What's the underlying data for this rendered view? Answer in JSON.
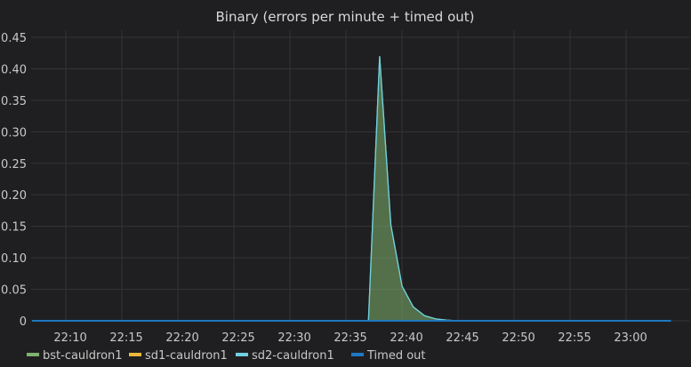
{
  "chart_data": {
    "type": "area",
    "title": "Binary (errors per minute + timed out)",
    "xlabel": "",
    "ylabel": "",
    "ylim": [
      0,
      0.45
    ],
    "xlim": [
      "22:07",
      "23:04"
    ],
    "y_ticks": [
      "0",
      "0.05",
      "0.10",
      "0.15",
      "0.20",
      "0.25",
      "0.30",
      "0.35",
      "0.40",
      "0.45"
    ],
    "x_ticks": [
      "22:10",
      "22:15",
      "22:20",
      "22:25",
      "22:30",
      "22:35",
      "22:40",
      "22:45",
      "22:50",
      "22:55",
      "23:00"
    ],
    "grid": true,
    "legend_position": "bottom",
    "series": [
      {
        "name": "bst-cauldron1",
        "color": "#7eb26d",
        "fill": true,
        "x": [
          "22:07",
          "22:36",
          "22:37",
          "22:38",
          "22:39",
          "22:40",
          "22:41",
          "22:42",
          "22:43",
          "22:44",
          "22:45",
          "23:04"
        ],
        "values": [
          0,
          0,
          0,
          0.42,
          0.152,
          0.055,
          0.022,
          0.008,
          0.003,
          0.001,
          0,
          0
        ]
      },
      {
        "name": "sd1-cauldron1",
        "color": "#eab839",
        "fill": false,
        "x": [
          "22:07",
          "23:04"
        ],
        "values": [
          0,
          0
        ]
      },
      {
        "name": "sd2-cauldron1",
        "color": "#6ed0e0",
        "fill": false,
        "x": [
          "22:07",
          "22:36",
          "22:37",
          "22:38",
          "22:39",
          "22:40",
          "22:41",
          "22:42",
          "22:43",
          "22:44",
          "22:45",
          "23:04"
        ],
        "values": [
          0,
          0,
          0,
          0.42,
          0.152,
          0.055,
          0.022,
          0.008,
          0.003,
          0.001,
          0,
          0
        ]
      },
      {
        "name": "Timed out",
        "color": "#1f78c1",
        "fill": false,
        "x": [
          "22:07",
          "23:04"
        ],
        "values": [
          0,
          0
        ]
      }
    ]
  }
}
